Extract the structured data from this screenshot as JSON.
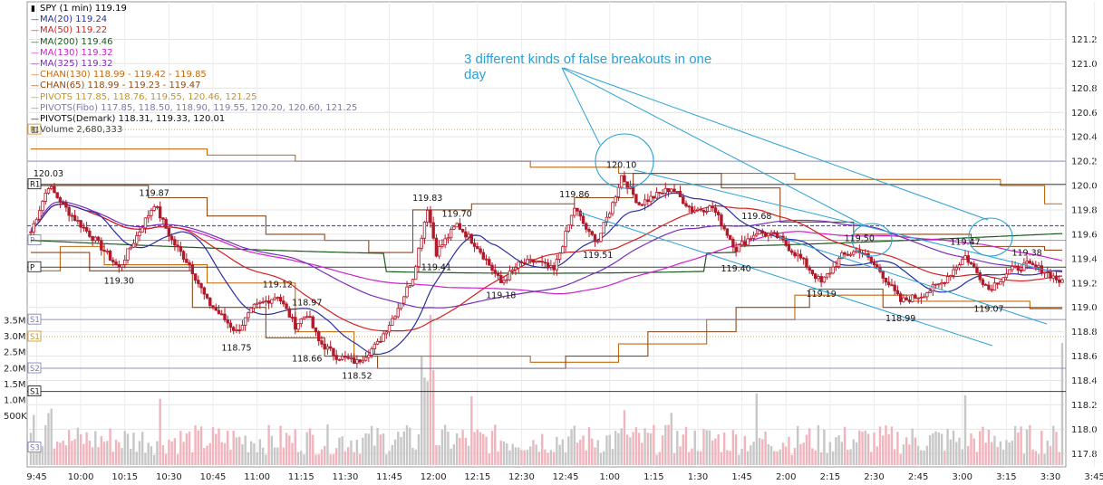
{
  "chart_data": {
    "type": "candlestick",
    "symbol_line": "SPY (1 min) 119.19",
    "legend": [
      {
        "text": "MA(20) 119.24",
        "color": "#2b2fa0",
        "symbol": "dash"
      },
      {
        "text": "MA(50) 119.22",
        "color": "#d42020",
        "symbol": "dash"
      },
      {
        "text": "MA(200) 119.46",
        "color": "#1d5a1d",
        "symbol": "dash"
      },
      {
        "text": "MA(130) 119.32",
        "color": "#cc22cc",
        "symbol": "dash"
      },
      {
        "text": "MA(325) 119.32",
        "color": "#7a2fb8",
        "symbol": "dash"
      },
      {
        "text": "CHAN(130) 118.99 - 119.42 - 119.85",
        "color": "#c46a10",
        "symbol": "dash"
      },
      {
        "text": "CHAN(65) 118.99 - 119.23 - 119.47",
        "color": "#8a4a1a",
        "symbol": "dash"
      },
      {
        "text": "PIVOTS 117.85, 118.76, 119.55, 120.46, 121.25",
        "color": "#c8921e",
        "symbol": "dash"
      },
      {
        "text": "PIVOTS(Fibo) 117.85, 118.50, 118.90, 119.55, 120.20, 120.60, 121.25",
        "color": "#7a7ab0",
        "symbol": "dash"
      },
      {
        "text": "PIVOTS(Demark) 118.31, 119.33, 120.01",
        "color": "#111111",
        "symbol": "dash"
      },
      {
        "text": "Volume 2,680,333",
        "color": "#444444",
        "symbol": "bars"
      }
    ],
    "annotation": "3 different kinds of false breakouts in one day",
    "y_ticks": [
      "121.2",
      "121.0",
      "120.8",
      "120.6",
      "120.4",
      "120.2",
      "120.0",
      "119.8",
      "119.6",
      "119.4",
      "119.2",
      "119.0",
      "118.8",
      "118.6",
      "118.4",
      "118.2",
      "118.0",
      "117.8"
    ],
    "vol_ticks": [
      "3.5M",
      "3.0M",
      "2.5M",
      "2.0M",
      "1.5M",
      "1.0M",
      "500K"
    ],
    "x_ticks": [
      "9:45",
      "10:00",
      "10:15",
      "10:30",
      "10:45",
      "11:00",
      "11:15",
      "11:30",
      "11:45",
      "12:00",
      "12:15",
      "12:30",
      "12:45",
      "1:00",
      "1:15",
      "1:30",
      "1:45",
      "2:00",
      "2:15",
      "2:30",
      "2:45",
      "3:00",
      "3:15",
      "3:30",
      "3:45"
    ],
    "ylim": [
      117.75,
      121.3
    ],
    "pivot_tags": [
      "R1",
      "R1",
      "P",
      "P",
      "S1",
      "S1",
      "S2",
      "S1",
      "S3"
    ],
    "price_labels": [
      {
        "t": 6,
        "p": 120.03,
        "text": "120.03"
      },
      {
        "t": 42,
        "p": 119.87,
        "text": "119.87"
      },
      {
        "t": 30,
        "p": 119.3,
        "text": "119.30"
      },
      {
        "t": 70,
        "p": 118.75,
        "text": "118.75"
      },
      {
        "t": 84,
        "p": 119.12,
        "text": "119.12"
      },
      {
        "t": 94,
        "p": 118.97,
        "text": "118.97"
      },
      {
        "t": 94,
        "p": 118.66,
        "text": "118.66"
      },
      {
        "t": 111,
        "p": 118.52,
        "text": "118.52"
      },
      {
        "t": 135,
        "p": 119.83,
        "text": "119.83"
      },
      {
        "t": 145,
        "p": 119.7,
        "text": "119.70"
      },
      {
        "t": 138,
        "p": 119.41,
        "text": "119.41"
      },
      {
        "t": 160,
        "p": 119.18,
        "text": "119.18"
      },
      {
        "t": 185,
        "p": 119.86,
        "text": "119.86"
      },
      {
        "t": 193,
        "p": 119.51,
        "text": "119.51"
      },
      {
        "t": 201,
        "p": 120.1,
        "text": "120.10"
      },
      {
        "t": 247,
        "p": 119.68,
        "text": "119.68"
      },
      {
        "t": 240,
        "p": 119.4,
        "text": "119.40"
      },
      {
        "t": 282,
        "p": 119.5,
        "text": "119.50"
      },
      {
        "t": 269,
        "p": 119.19,
        "text": "119.19"
      },
      {
        "t": 296,
        "p": 118.99,
        "text": "118.99"
      },
      {
        "t": 318,
        "p": 119.47,
        "text": "119.47"
      },
      {
        "t": 339,
        "p": 119.38,
        "text": "119.38"
      },
      {
        "t": 326,
        "p": 119.07,
        "text": "119.07"
      }
    ],
    "colors": {
      "candle": "#b01a2a",
      "ma20": "#2b2fa0",
      "ma50": "#d42020",
      "ma200": "#1d5a1d",
      "ma130": "#cc22cc",
      "ma325": "#7a2fb8",
      "chan130": "#c46a10",
      "chan65": "#8a4a1a",
      "annot": "#2aa1d6"
    }
  }
}
